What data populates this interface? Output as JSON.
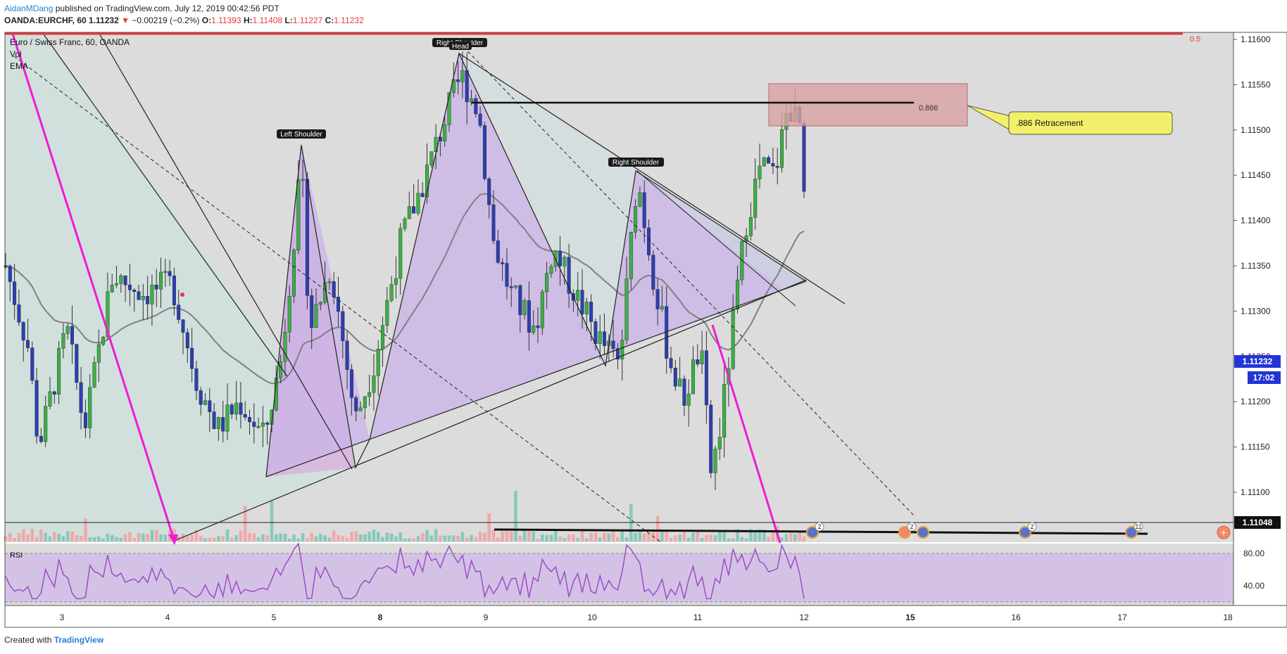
{
  "header": {
    "author": "AidanMDang",
    "published": "published on TradingView.com, July 12, 2019 00:42:56 PDT",
    "symbol": "OANDA:EURCHF, 60",
    "last": "1.11232",
    "change_arrow": "▼",
    "change": "−0.00219 (−0.2%)",
    "o_label": "O:",
    "o": "1.11393",
    "h_label": "H:",
    "h": "1.11408",
    "l_label": "L:",
    "l": "1.11227",
    "c_label": "C:",
    "c": "1.11232"
  },
  "legend": {
    "title": "Euro / Swiss Franc, 60, OANDA",
    "vol": "Vol",
    "ema": "EMA"
  },
  "labels": {
    "left_shoulder": "Left Shoulder",
    "head": "Head",
    "right_shoulder_top": "Right Shoulder",
    "right_shoulder": "Right Shoulder",
    "retracement_level": "0.886",
    "retracement_callout": ".886 Retracement",
    "fib_05": "0.5",
    "rsi": "RSI"
  },
  "axis_tags": {
    "price": "1.11232",
    "countdown": "17:02",
    "support": "1.11048"
  },
  "event_badges": [
    "2",
    "2",
    "2",
    "11"
  ],
  "footer": {
    "created_with": "Created with",
    "brand": "TradingView"
  },
  "colors": {
    "bullish": "#3cb043",
    "bearish": "#2c3fb0",
    "pane_bg": "#dcdcdc",
    "triangle": "#c9b3e8",
    "magenta": "#ee1bd6",
    "fib_red": "#e8383b",
    "retracement_box": "#d9a3a3",
    "callout": "#f2f06a",
    "rsi_line": "#9b4dc6",
    "ema": "#808080"
  },
  "chart_data": {
    "type": "candlestick",
    "symbol": "EURCHF",
    "timeframe": "60",
    "y_axis": {
      "ticks": [
        "1.11600",
        "1.11550",
        "1.11500",
        "1.11450",
        "1.11400",
        "1.11350",
        "1.11300",
        "1.11250",
        "1.11200",
        "1.11150",
        "1.11100"
      ],
      "range": [
        1.1105,
        1.1162
      ]
    },
    "x_axis": {
      "ticks": [
        "3",
        "4",
        "5",
        "8",
        "9",
        "10",
        "11",
        "12",
        "15",
        "16",
        "17",
        "18"
      ]
    },
    "rsi": {
      "ticks": [
        "80.00",
        "40.00"
      ],
      "range": [
        20,
        100
      ]
    },
    "last_price": 1.11232,
    "fib_levels": [
      {
        "level": "0.5",
        "price": 1.1161
      },
      {
        "level": "0.886",
        "price": 1.1153
      }
    ],
    "support": 1.11048,
    "pattern": "Head and Shoulders"
  }
}
